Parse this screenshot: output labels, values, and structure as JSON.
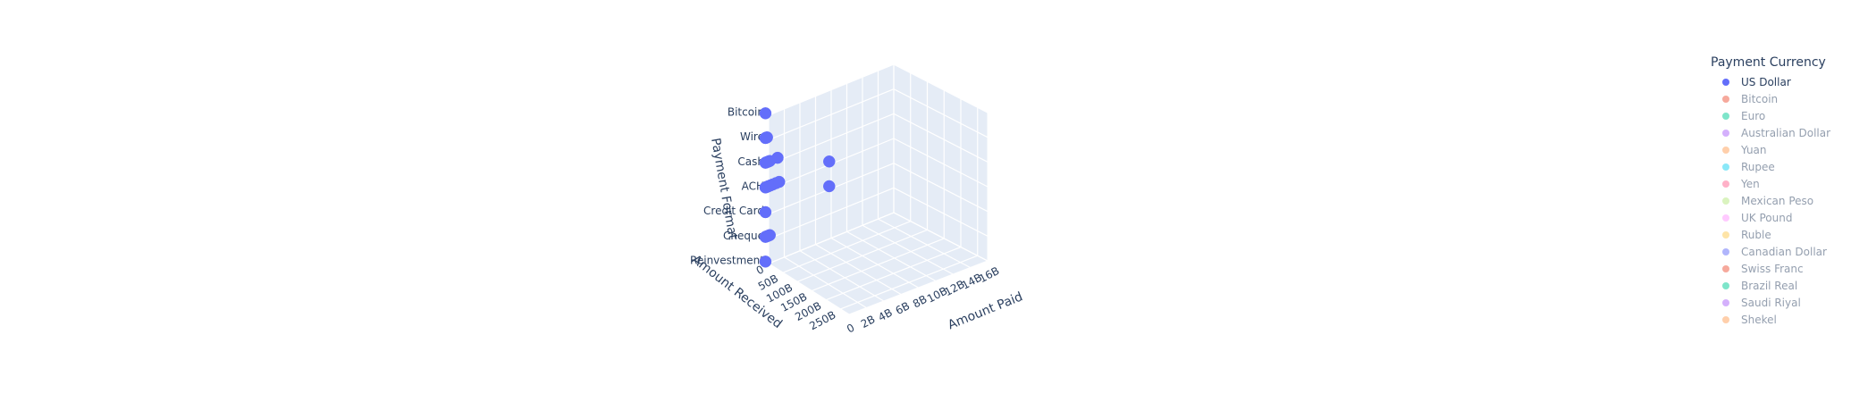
{
  "chart_data": {
    "type": "scatter",
    "title": "",
    "axes": {
      "x": {
        "title": "Amount Paid",
        "ticks": [
          "0",
          "2B",
          "4B",
          "6B",
          "8B",
          "10B",
          "12B",
          "14B",
          "16B"
        ]
      },
      "y": {
        "title": "Amount Received",
        "ticks": [
          "0",
          "50B",
          "100B",
          "150B",
          "200B",
          "250B"
        ]
      },
      "z": {
        "title": "Payment Format",
        "ticks": [
          "Reinvestment",
          "Cheque",
          "Credit Card",
          "ACH",
          "Cash",
          "Wire",
          "Bitcoin"
        ]
      }
    },
    "legend": {
      "title": "Payment Currency",
      "placement": "top-right",
      "entries": [
        {
          "name": "US Dollar",
          "color": "#636efa",
          "visible": true
        },
        {
          "name": "Bitcoin",
          "color": "#EF553B",
          "visible": false
        },
        {
          "name": "Euro",
          "color": "#00cc96",
          "visible": false
        },
        {
          "name": "Australian Dollar",
          "color": "#ab63fa",
          "visible": false
        },
        {
          "name": "Yuan",
          "color": "#FFA15A",
          "visible": false
        },
        {
          "name": "Rupee",
          "color": "#19d3f3",
          "visible": false
        },
        {
          "name": "Yen",
          "color": "#FF6692",
          "visible": false
        },
        {
          "name": "Mexican Peso",
          "color": "#B6E880",
          "visible": false
        },
        {
          "name": "UK Pound",
          "color": "#FF97FF",
          "visible": false
        },
        {
          "name": "Ruble",
          "color": "#FECB52",
          "visible": false
        },
        {
          "name": "Canadian Dollar",
          "color": "#636efa",
          "visible": false
        },
        {
          "name": "Swiss Franc",
          "color": "#EF553B",
          "visible": false
        },
        {
          "name": "Brazil Real",
          "color": "#00cc96",
          "visible": false
        },
        {
          "name": "Saudi Riyal",
          "color": "#ab63fa",
          "visible": false
        },
        {
          "name": "Shekel",
          "color": "#FFA15A",
          "visible": false
        }
      ]
    },
    "series": [
      {
        "name": "US Dollar",
        "color": "#636efa",
        "points": [
          {
            "x": 0.05,
            "y": 1,
            "z": "Bitcoin"
          },
          {
            "x": 0.05,
            "y": 1,
            "z": "Wire"
          },
          {
            "x": 0.15,
            "y": 1,
            "z": "Wire"
          },
          {
            "x": 0.25,
            "y": 1,
            "z": "Wire"
          },
          {
            "x": 0.05,
            "y": 1,
            "z": "Cash"
          },
          {
            "x": 0.15,
            "y": 1,
            "z": "Cash"
          },
          {
            "x": 0.3,
            "y": 1,
            "z": "Cash"
          },
          {
            "x": 0.45,
            "y": 1,
            "z": "Cash"
          },
          {
            "x": 0.6,
            "y": 1,
            "z": "Cash"
          },
          {
            "x": 1.6,
            "y": 1,
            "z": "Cash"
          },
          {
            "x": 0.05,
            "y": 1,
            "z": "ACH"
          },
          {
            "x": 0.15,
            "y": 1,
            "z": "ACH"
          },
          {
            "x": 0.3,
            "y": 1,
            "z": "ACH"
          },
          {
            "x": 0.45,
            "y": 1,
            "z": "ACH"
          },
          {
            "x": 0.7,
            "y": 1,
            "z": "ACH"
          },
          {
            "x": 1.0,
            "y": 1,
            "z": "ACH"
          },
          {
            "x": 1.4,
            "y": 1,
            "z": "ACH"
          },
          {
            "x": 1.8,
            "y": 1,
            "z": "ACH"
          },
          {
            "x": 8.2,
            "y": 1,
            "z": "ACH"
          },
          {
            "x": 8.2,
            "y": 1,
            "z": "Credit Card"
          },
          {
            "x": 0.05,
            "y": 1,
            "z": "Credit Card"
          },
          {
            "x": 0.05,
            "y": 1,
            "z": "Cheque"
          },
          {
            "x": 0.2,
            "y": 1,
            "z": "Cheque"
          },
          {
            "x": 0.4,
            "y": 1,
            "z": "Cheque"
          },
          {
            "x": 0.6,
            "y": 1,
            "z": "Cheque"
          },
          {
            "x": 0.05,
            "y": 1,
            "z": "Reinvestment"
          }
        ]
      }
    ]
  }
}
